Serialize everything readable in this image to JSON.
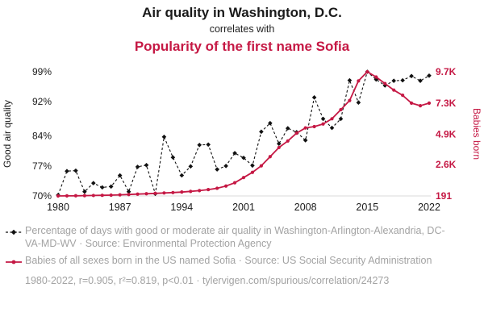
{
  "header": {
    "title": "Air quality in Washington, D.C.",
    "subtitle": "correlates with",
    "title2": "Popularity of the first name Sofia"
  },
  "colors": {
    "accent_red": "#c51844",
    "series_black": "#111111",
    "grid": "#d9d9d9",
    "text_gray": "#a3a3a3"
  },
  "chart_data": {
    "type": "line",
    "x_range": [
      1980,
      2022
    ],
    "x_ticks": [
      1980,
      1987,
      1994,
      2001,
      2008,
      2015,
      2022
    ],
    "left_axis": {
      "label": "Good air quality",
      "min": 70,
      "max": 99,
      "tick_values": [
        99,
        92,
        84,
        77,
        70
      ],
      "tick_labels": [
        "99%",
        "92%",
        "84%",
        "77%",
        "70%"
      ]
    },
    "right_axis": {
      "label": "Babies born",
      "min": 191,
      "max": 9700,
      "tick_values": [
        9700,
        7300,
        4900,
        2600,
        191
      ],
      "tick_labels": [
        "9.7K",
        "7.3K",
        "4.9K",
        "2.6K",
        "191"
      ]
    },
    "series": [
      {
        "name": "Percentage of days with good or moderate air quality in Washington-Arlington-Alexandria, DC-VA-MD-WV",
        "axis": "left",
        "color": "#111111",
        "dash": true,
        "marker": "diamond",
        "values": [
          70.2,
          75.8,
          75.9,
          71.0,
          73.0,
          72.0,
          72.2,
          74.8,
          71.0,
          76.8,
          77.2,
          70.5,
          83.8,
          79.0,
          74.8,
          76.9,
          81.9,
          82.0,
          76.2,
          77.0,
          80.0,
          78.9,
          77.1,
          85.0,
          87.0,
          82.2,
          85.8,
          84.9,
          83.0,
          93.0,
          88.0,
          85.9,
          88.0,
          97.0,
          91.8,
          99.0,
          97.2,
          95.8,
          96.9,
          97.0,
          98.0,
          96.9,
          98.1
        ]
      },
      {
        "name": "Babies of all sexes born in the US named Sofia",
        "axis": "right",
        "color": "#c51844",
        "dash": false,
        "marker": "circle",
        "values": [
          191,
          200,
          205,
          215,
          225,
          240,
          255,
          275,
          300,
          330,
          360,
          390,
          420,
          450,
          490,
          540,
          600,
          680,
          780,
          950,
          1200,
          1600,
          2000,
          2500,
          3200,
          3900,
          4400,
          5000,
          5400,
          5500,
          5700,
          6100,
          6800,
          7500,
          9000,
          9700,
          9300,
          8800,
          8300,
          7900,
          7300,
          7100,
          7300
        ]
      }
    ]
  },
  "legend": [
    {
      "text": "Percentage of days with good or moderate air quality in Washington-Arlington-Alexandria, DC-VA-MD-WV · Source: Environmental Protection Agency"
    },
    {
      "text": "Babies of all sexes born in the US named Sofia · Source: US Social Security Administration"
    }
  ],
  "footer": {
    "text": "1980-2022, r=0.905, r²=0.819, p<0.01 · tylervigen.com/spurious/correlation/24273"
  }
}
